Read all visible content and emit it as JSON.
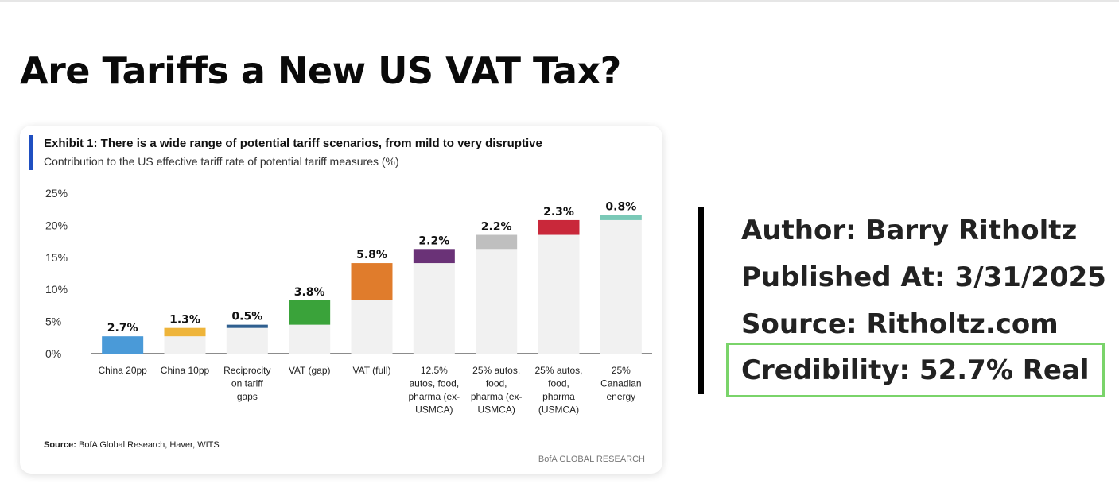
{
  "page_title": "Are Tariffs a New US VAT Tax?",
  "exhibit": {
    "title": "Exhibit 1: There is a wide range of potential tariff scenarios, from mild to very disruptive",
    "subtitle": "Contribution to the US effective tariff rate of potential tariff measures (%)",
    "source_label": "Source:",
    "source_text": " BofA Global Research, Haver, WITS",
    "brand": "BofA GLOBAL RESEARCH"
  },
  "meta": {
    "author_label": "Author:",
    "author_value": " Barry Ritholtz",
    "published_label": "Published At:",
    "published_value": " 3/31/2025",
    "source_label": "Source:",
    "source_value": " Ritholtz.com",
    "credibility_label": "Credibility:",
    "credibility_value": " 52.7% Real",
    "credibility_border_color": "#7ad46a"
  },
  "chart_data": {
    "type": "bar",
    "variant": "waterfall",
    "title": "Exhibit 1: There is a wide range of potential tariff scenarios, from mild to very disruptive",
    "subtitle": "Contribution to the US effective tariff rate of potential tariff measures (%)",
    "ylim": [
      0,
      25
    ],
    "yticks": [
      "0%",
      "5%",
      "10%",
      "15%",
      "20%",
      "25%"
    ],
    "grid": false,
    "categories": [
      [
        "China 20pp"
      ],
      [
        "China  10pp"
      ],
      [
        "Reciprocity",
        "on tariff",
        "gaps"
      ],
      [
        "VAT (gap)"
      ],
      [
        "VAT (full)"
      ],
      [
        "12.5%",
        "autos, food,",
        "pharma (ex-",
        "USMCA)"
      ],
      [
        "25% autos,",
        "food,",
        "pharma (ex-",
        "USMCA)"
      ],
      [
        "25% autos,",
        "food,",
        "pharma",
        "(USMCA)"
      ],
      [
        "25%",
        "Canadian",
        "energy"
      ]
    ],
    "values": [
      2.7,
      1.3,
      0.5,
      3.8,
      5.8,
      2.2,
      2.2,
      2.3,
      0.8
    ],
    "value_labels": [
      "2.7%",
      "1.3%",
      "0.5%",
      "3.8%",
      "5.8%",
      "2.2%",
      "2.2%",
      "2.3%",
      "0.8%"
    ],
    "colors": [
      "#4a9ad8",
      "#eeb43a",
      "#2f5f8f",
      "#3aa33a",
      "#e07c2c",
      "#6a3277",
      "#bfbfbf",
      "#c9283a",
      "#7ac9b7"
    ],
    "base_color": "#f1f1f1"
  }
}
